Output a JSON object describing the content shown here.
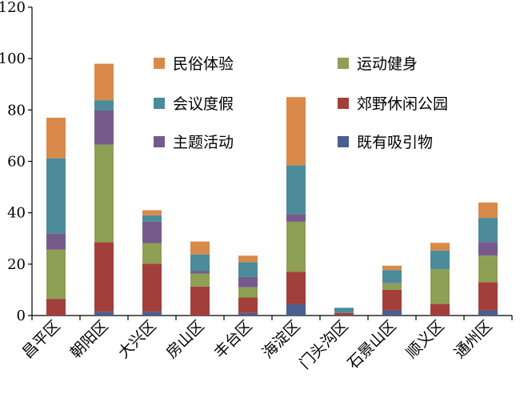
{
  "chart_data": {
    "type": "bar",
    "stacked": true,
    "categories": [
      "昌平区",
      "朝阳区",
      "大兴区",
      "房山区",
      "丰台区",
      "海淀区",
      "门头沟区",
      "石景山区",
      "顺义区",
      "通州区"
    ],
    "series": [
      {
        "name": "既有吸引物",
        "color": "#4a5f8e",
        "values": [
          0,
          1.5,
          1.5,
          0,
          1,
          4.5,
          0,
          2,
          0,
          2
        ]
      },
      {
        "name": "郊野休闲公园",
        "color": "#a33f3b",
        "values": [
          6.5,
          27,
          18.7,
          11.3,
          6,
          12.5,
          1,
          8,
          4.5,
          11
        ]
      },
      {
        "name": "运动健身",
        "color": "#8da053",
        "values": [
          19.2,
          38,
          8,
          5,
          4,
          19.5,
          0,
          2.5,
          13.5,
          10.3
        ]
      },
      {
        "name": "主题活动",
        "color": "#765a8c",
        "values": [
          6.2,
          13.3,
          8.3,
          1,
          4,
          3,
          0,
          0.2,
          0,
          5.3
        ]
      },
      {
        "name": "会议度假",
        "color": "#4b8b9a",
        "values": [
          29.3,
          4,
          2.5,
          6.5,
          5.8,
          19,
          2,
          5,
          7.3,
          9.4
        ]
      },
      {
        "name": "民俗体验",
        "color": "#d98a4a",
        "values": [
          15.8,
          14.2,
          2,
          5,
          2.5,
          26.5,
          0,
          1.7,
          3,
          6
        ]
      }
    ],
    "ylim": [
      0,
      120
    ],
    "yticks": [
      0,
      20,
      40,
      60,
      80,
      100,
      120
    ],
    "grid": false,
    "legend": {
      "placement": "top-right",
      "columns": [
        [
          "民俗体验",
          "会议度假",
          "主题活动"
        ],
        [
          "运动健身",
          "郊野休闲公园",
          "既有吸引物"
        ]
      ]
    }
  }
}
